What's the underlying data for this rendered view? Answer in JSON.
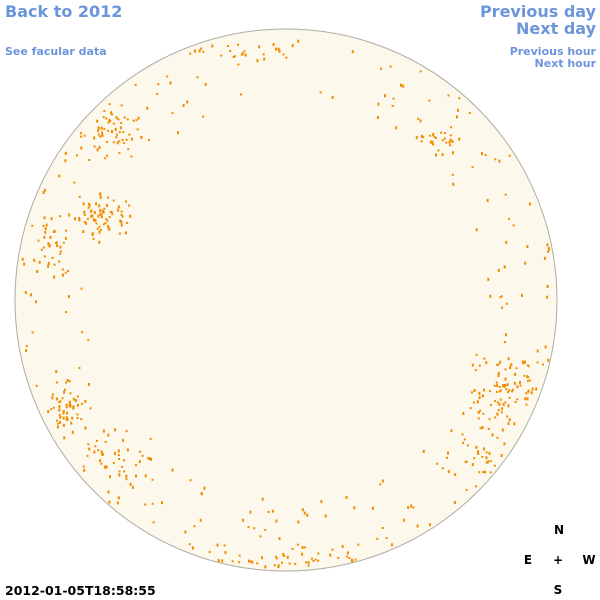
{
  "nav": {
    "back": "Back to 2012",
    "facular": "See facular data",
    "previous_day": "Previous day",
    "next_day": "Next day",
    "previous_hour": "Previous hour",
    "next_hour": "Next hour"
  },
  "timestamp": "2012-01-05T18:58:55",
  "compass": {
    "north": "N",
    "east": "E",
    "center": "+",
    "west": "W",
    "south": "S"
  }
}
